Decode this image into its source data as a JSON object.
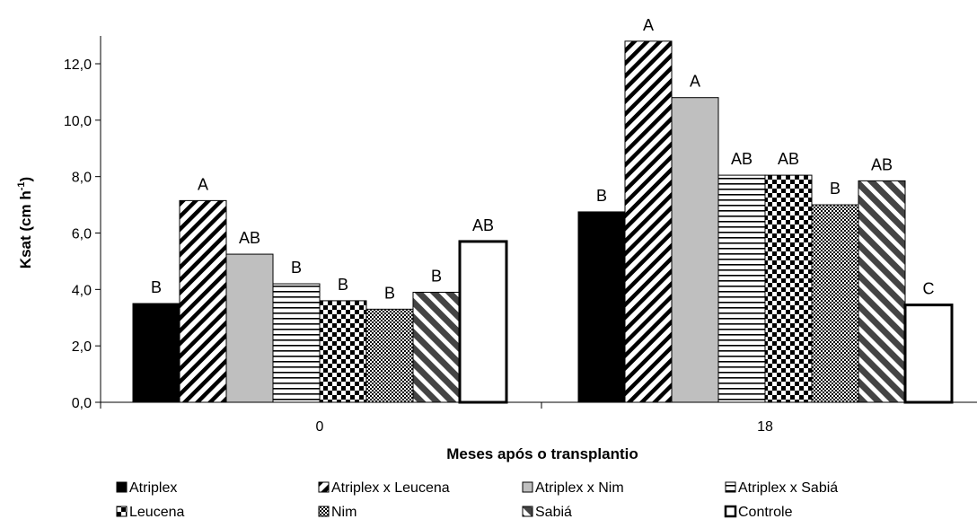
{
  "chart_data": {
    "type": "bar",
    "categories": [
      "0",
      "18"
    ],
    "xlabel": "Meses após o transplantio",
    "ylabel_main": "Ksat (cm h",
    "ylabel_sup": "-1",
    "ylabel_close": ")",
    "ylim": [
      0,
      12
    ],
    "yticks": [
      "0,0",
      "2,0",
      "4,0",
      "6,0",
      "8,0",
      "10,0",
      "12,0"
    ],
    "grid": false,
    "legend_position": "bottom",
    "series": [
      {
        "name": "Atriplex",
        "values": [
          3.5,
          6.75
        ],
        "labels": [
          "B",
          "B"
        ],
        "pattern": "solid-black"
      },
      {
        "name": "Atriplex x Leucena",
        "values": [
          7.15,
          12.8
        ],
        "labels": [
          "A",
          "A"
        ],
        "pattern": "diagonal-stripes"
      },
      {
        "name": "Atriplex x Nim",
        "values": [
          5.25,
          10.8
        ],
        "labels": [
          "AB",
          "A"
        ],
        "pattern": "solid-gray"
      },
      {
        "name": "Atriplex x Sabiá",
        "values": [
          4.2,
          8.05
        ],
        "labels": [
          "B",
          "AB"
        ],
        "pattern": "horizontal-stripes"
      },
      {
        "name": "Leucena",
        "values": [
          3.6,
          8.05
        ],
        "labels": [
          "B",
          "AB"
        ],
        "pattern": "checker"
      },
      {
        "name": "Nim",
        "values": [
          3.3,
          7.0
        ],
        "labels": [
          "B",
          "B"
        ],
        "pattern": "fine-cross"
      },
      {
        "name": "Sabiá",
        "values": [
          3.9,
          7.85
        ],
        "labels": [
          "B",
          "AB"
        ],
        "pattern": "wide-diagonal"
      },
      {
        "name": "Controle",
        "values": [
          5.7,
          3.45
        ],
        "labels": [
          "AB",
          "C"
        ],
        "pattern": "white-outline"
      }
    ]
  }
}
